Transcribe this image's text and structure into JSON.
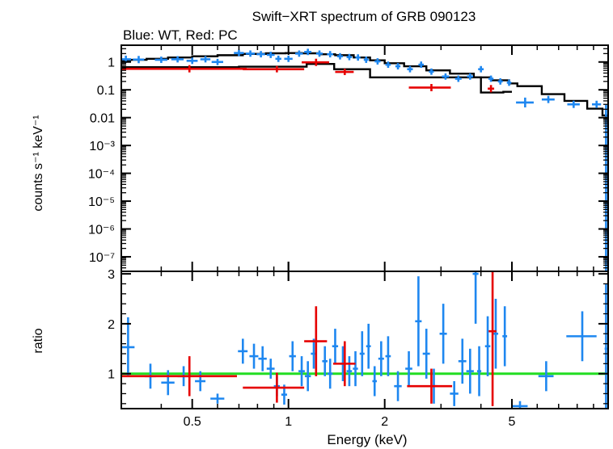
{
  "chart_data": [
    {
      "type": "scatter",
      "panel": "spectrum",
      "title": "Swift−XRT spectrum of GRB 090123",
      "subtitle": "Blue: WT, Red: PC",
      "xlabel": "Energy (keV)",
      "ylabel": "counts s⁻¹ keV⁻¹",
      "xscale": "log",
      "yscale": "log",
      "xlim": [
        0.3,
        10
      ],
      "ylim": [
        3e-08,
        4
      ],
      "x_ticks": [
        0.5,
        1,
        2,
        5
      ],
      "x_tick_labels": [
        "0.5",
        "1",
        "2",
        "5"
      ],
      "y_ticks": [
        1,
        0.1,
        0.01,
        0.001,
        0.0001,
        1e-05,
        1e-06,
        1e-07
      ],
      "y_tick_labels": [
        "1",
        "0.1",
        "0.01",
        "10⁻³",
        "10⁻⁴",
        "10⁻⁵",
        "10⁻⁶",
        "10⁻⁷"
      ],
      "colors": {
        "wt": "#1e87f0",
        "pc": "#e60000",
        "model": "#000000"
      },
      "series": [
        {
          "key": "wt",
          "points": [
            [
              0.31,
              1.25,
              0.012,
              0.35
            ],
            [
              0.34,
              1.22,
              0.014,
              0.35
            ],
            [
              0.4,
              1.2,
              0.018,
              0.3
            ],
            [
              0.45,
              1.25,
              0.02,
              0.3
            ],
            [
              0.5,
              1.1,
              0.02,
              0.3
            ],
            [
              0.55,
              1.25,
              0.02,
              0.3
            ],
            [
              0.6,
              1.0,
              0.025,
              0.3
            ],
            [
              0.7,
              2.1,
              0.025,
              0.3
            ],
            [
              0.76,
              2.0,
              0.025,
              0.3
            ],
            [
              0.82,
              1.9,
              0.025,
              0.3
            ],
            [
              0.88,
              1.8,
              0.025,
              0.3
            ],
            [
              0.93,
              1.3,
              0.02,
              0.3
            ],
            [
              1.0,
              1.3,
              0.03,
              0.3
            ],
            [
              1.08,
              2.0,
              0.03,
              0.3
            ],
            [
              1.15,
              2.3,
              0.03,
              0.3
            ],
            [
              1.25,
              2.0,
              0.03,
              0.3
            ],
            [
              1.35,
              1.9,
              0.03,
              0.3
            ],
            [
              1.45,
              1.6,
              0.03,
              0.3
            ],
            [
              1.55,
              1.5,
              0.03,
              0.3
            ],
            [
              1.65,
              1.45,
              0.03,
              0.3
            ],
            [
              1.75,
              1.2,
              0.03,
              0.3
            ],
            [
              1.9,
              1.05,
              0.04,
              0.3
            ],
            [
              2.05,
              0.8,
              0.04,
              0.3
            ],
            [
              2.2,
              0.7,
              0.04,
              0.3
            ],
            [
              2.4,
              0.55,
              0.05,
              0.3
            ],
            [
              2.6,
              0.8,
              0.05,
              0.3
            ],
            [
              2.8,
              0.45,
              0.05,
              0.3
            ],
            [
              3.1,
              0.3,
              0.08,
              0.3
            ],
            [
              3.4,
              0.25,
              0.08,
              0.3
            ],
            [
              3.7,
              0.3,
              0.08,
              0.3
            ],
            [
              4.0,
              0.55,
              0.08,
              0.3
            ],
            [
              4.3,
              0.25,
              0.08,
              0.3
            ],
            [
              4.6,
              0.2,
              0.08,
              0.3
            ],
            [
              4.9,
              0.18,
              0.08,
              0.3
            ],
            [
              5.5,
              0.035,
              0.35,
              0.5
            ],
            [
              6.5,
              0.045,
              0.3,
              0.35
            ],
            [
              7.8,
              0.03,
              0.35,
              0.35
            ],
            [
              9.2,
              0.03,
              0.3,
              0.35
            ]
          ]
        },
        {
          "key": "pc",
          "points": [
            [
              0.49,
              0.57,
              0.25,
              0.35
            ],
            [
              0.92,
              0.55,
              0.2,
              0.3
            ],
            [
              1.22,
              0.97,
              0.12,
              0.35
            ],
            [
              1.5,
              0.44,
              0.1,
              0.3
            ],
            [
              2.8,
              0.12,
              0.42,
              0.35
            ],
            [
              4.3,
              0.11,
              0.1,
              0.35
            ]
          ]
        }
      ],
      "models": [
        {
          "key": "wt",
          "steps": [
            [
              0.3,
              1.15
            ],
            [
              0.32,
              1.2
            ],
            [
              0.36,
              1.3
            ],
            [
              0.42,
              1.45
            ],
            [
              0.5,
              1.6
            ],
            [
              0.6,
              1.75
            ],
            [
              0.72,
              1.95
            ],
            [
              0.85,
              2.05
            ],
            [
              0.98,
              2.1
            ],
            [
              1.1,
              2.05
            ],
            [
              1.25,
              1.9
            ],
            [
              1.4,
              1.75
            ],
            [
              1.6,
              1.45
            ],
            [
              1.8,
              1.15
            ],
            [
              2.0,
              0.9
            ],
            [
              2.3,
              0.7
            ],
            [
              2.7,
              0.5
            ],
            [
              3.2,
              0.38
            ],
            [
              3.8,
              0.28
            ],
            [
              4.3,
              0.22
            ],
            [
              4.9,
              0.17
            ],
            [
              5.2,
              0.135
            ],
            [
              6.2,
              0.07
            ],
            [
              7.3,
              0.04
            ],
            [
              8.6,
              0.021
            ],
            [
              9.6,
              0.012
            ],
            [
              10,
              0.012
            ]
          ]
        },
        {
          "key": "pc",
          "steps": [
            [
              0.3,
              0.65
            ],
            [
              0.7,
              0.68
            ],
            [
              1.14,
              0.85
            ],
            [
              1.39,
              0.55
            ],
            [
              1.8,
              0.28
            ],
            [
              4.0,
              0.08
            ],
            [
              4.7,
              0.085
            ],
            [
              5.0,
              0.085
            ]
          ]
        }
      ]
    },
    {
      "type": "scatter",
      "panel": "ratio",
      "ylabel": "ratio",
      "xscale": "log",
      "xlim": [
        0.3,
        10
      ],
      "ylim": [
        0.3,
        3.05
      ],
      "y_ticks": [
        1,
        2,
        3
      ],
      "y_tick_labels": [
        "1",
        "2",
        "3"
      ],
      "reference_line": 1,
      "colors": {
        "wt": "#1e87f0",
        "pc": "#e60000",
        "reference": "#22dd22"
      },
      "series": [
        {
          "key": "wt",
          "points": [
            [
              0.315,
              1.53,
              0.015,
              0.6
            ],
            [
              0.37,
              0.95,
              0.015,
              0.25
            ],
            [
              0.42,
              0.82,
              0.02,
              0.25
            ],
            [
              0.47,
              0.95,
              0.02,
              0.2
            ],
            [
              0.53,
              0.85,
              0.02,
              0.2
            ],
            [
              0.6,
              0.5,
              0.03,
              0.1
            ],
            [
              0.72,
              1.45,
              0.025,
              0.25
            ],
            [
              0.78,
              1.35,
              0.025,
              0.25
            ],
            [
              0.83,
              1.3,
              0.025,
              0.25
            ],
            [
              0.88,
              1.1,
              0.025,
              0.2
            ],
            [
              0.92,
              0.75,
              0.02,
              0.2
            ],
            [
              0.97,
              0.58,
              0.02,
              0.2
            ],
            [
              1.03,
              1.35,
              0.025,
              0.3
            ],
            [
              1.1,
              1.05,
              0.025,
              0.3
            ],
            [
              1.15,
              0.95,
              0.025,
              0.3
            ],
            [
              1.2,
              1.4,
              0.025,
              0.3
            ],
            [
              1.3,
              1.25,
              0.025,
              0.3
            ],
            [
              1.35,
              1.0,
              0.025,
              0.3
            ],
            [
              1.4,
              1.55,
              0.03,
              0.35
            ],
            [
              1.48,
              1.2,
              0.03,
              0.35
            ],
            [
              1.55,
              1.05,
              0.03,
              0.3
            ],
            [
              1.62,
              1.1,
              0.03,
              0.35
            ],
            [
              1.7,
              1.4,
              0.03,
              0.45
            ],
            [
              1.78,
              1.55,
              0.03,
              0.45
            ],
            [
              1.86,
              0.85,
              0.03,
              0.3
            ],
            [
              1.95,
              1.3,
              0.04,
              0.35
            ],
            [
              2.05,
              1.35,
              0.04,
              0.4
            ],
            [
              2.2,
              0.75,
              0.06,
              0.3
            ],
            [
              2.38,
              1.1,
              0.06,
              0.35
            ],
            [
              2.55,
              2.05,
              0.06,
              0.9
            ],
            [
              2.7,
              1.4,
              0.07,
              0.5
            ],
            [
              2.85,
              0.75,
              0.07,
              0.35
            ],
            [
              3.05,
              1.8,
              0.08,
              0.6
            ],
            [
              3.3,
              0.6,
              0.1,
              0.25
            ],
            [
              3.5,
              1.25,
              0.1,
              0.45
            ],
            [
              3.7,
              1.05,
              0.1,
              0.45
            ],
            [
              3.85,
              3.0,
              0.08,
              1.0
            ],
            [
              3.95,
              1.05,
              0.06,
              0.5
            ],
            [
              4.2,
              1.55,
              0.08,
              0.6
            ],
            [
              4.45,
              1.8,
              0.08,
              0.7
            ],
            [
              4.75,
              1.75,
              0.08,
              0.6
            ],
            [
              5.3,
              0.35,
              0.3,
              0.1
            ],
            [
              6.4,
              0.95,
              0.35,
              0.3
            ],
            [
              8.3,
              1.75,
              0.9,
              0.5
            ],
            [
              9.85,
              1.5,
              0.1,
              1.3
            ]
          ]
        },
        {
          "key": "pc",
          "points": [
            [
              0.49,
              0.95,
              0.2,
              0.4
            ],
            [
              0.92,
              0.72,
              0.2,
              0.3
            ],
            [
              1.22,
              1.65,
              0.1,
              0.7
            ],
            [
              1.5,
              1.2,
              0.12,
              0.45
            ],
            [
              2.8,
              0.75,
              0.45,
              0.35
            ],
            [
              4.35,
              1.85,
              0.12,
              1.5
            ]
          ]
        }
      ]
    }
  ]
}
